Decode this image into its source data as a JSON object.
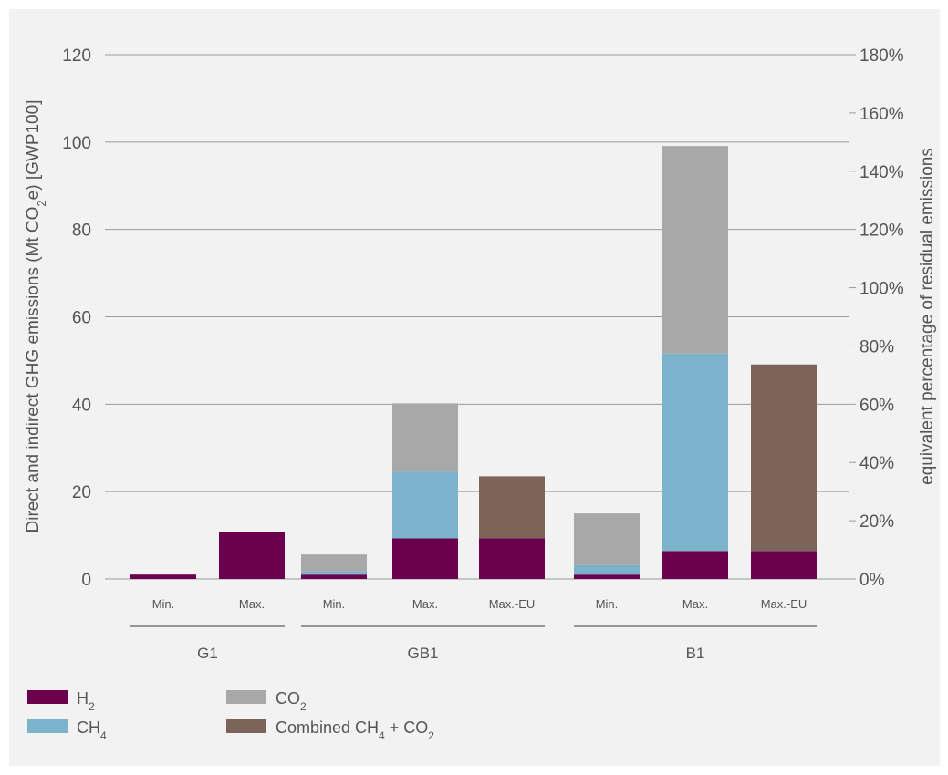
{
  "chart_data": {
    "type": "bar",
    "stacked": true,
    "ylabel_parts": [
      "Direct and indirect GHG emissions (Mt CO",
      "2",
      "e) [GWP100]"
    ],
    "ylabel2": "equivalent percentage of residual emissions",
    "ylim": [
      0,
      120
    ],
    "yticks": [
      "0",
      "20",
      "40",
      "60",
      "80",
      "100",
      "120"
    ],
    "y2ticks": [
      "0%",
      "20%",
      "40%",
      "60%",
      "80%",
      "100%",
      "120%",
      "140%",
      "160%",
      "180%"
    ],
    "y2lim": [
      0,
      180
    ],
    "grid": true,
    "legend_position": "bottom-left",
    "groups": [
      {
        "name": "G1",
        "categories": [
          "Min.",
          "Max."
        ]
      },
      {
        "name": "GB1",
        "categories": [
          "Min.",
          "Max.",
          "Max.-EU"
        ]
      },
      {
        "name": "B1",
        "categories": [
          "Min.",
          "Max.",
          "Max.-EU"
        ]
      }
    ],
    "categories": [
      "Min.",
      "Max.",
      "Min.",
      "Max.",
      "Max.-EU",
      "Min.",
      "Max.",
      "Max.-EU"
    ],
    "series": [
      {
        "name": "H2",
        "label_base": "H",
        "label_sub": "2",
        "color": "#6b004c",
        "values": [
          1.0,
          10.8,
          1.0,
          9.3,
          9.3,
          1.0,
          6.4,
          6.4
        ]
      },
      {
        "name": "CH4",
        "label_base": "CH",
        "label_sub": "4",
        "color": "#7bb3cc",
        "values": [
          0,
          0,
          0.8,
          15.2,
          0,
          2.2,
          45.2,
          0
        ]
      },
      {
        "name": "CO2",
        "label_base": "CO",
        "label_sub": "2",
        "color": "#a8a8a8",
        "values": [
          0,
          0,
          3.8,
          15.7,
          0,
          11.8,
          47.5,
          0
        ]
      },
      {
        "name": "Combined CH4 + CO2",
        "label_parts": [
          "Combined CH",
          "4",
          " + CO",
          "2"
        ],
        "color": "#7d645a",
        "values": [
          0,
          0,
          0,
          0,
          14.2,
          0,
          0,
          42.7
        ]
      }
    ]
  }
}
